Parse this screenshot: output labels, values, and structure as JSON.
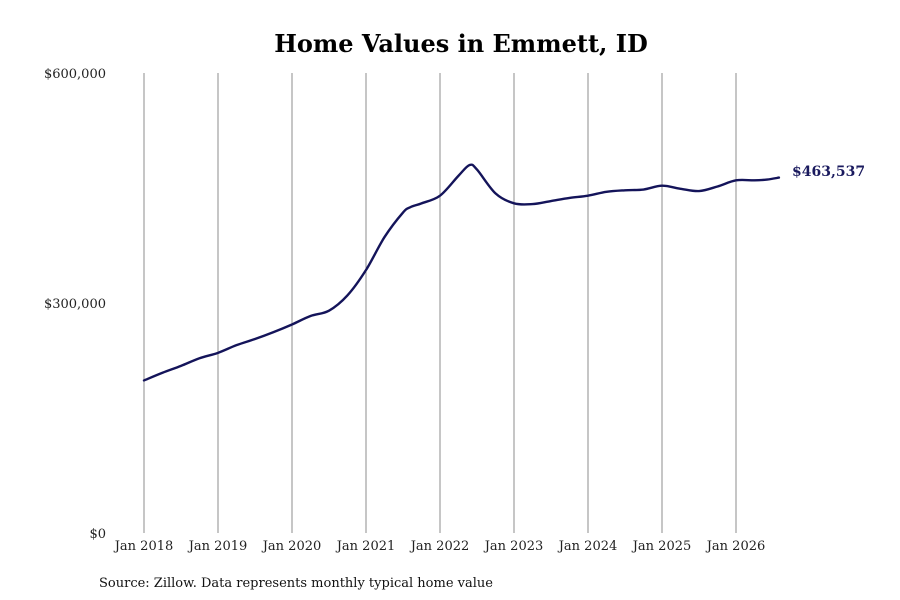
{
  "chart_data": {
    "type": "line",
    "title": "Home Values in Emmett, ID",
    "subtitle": "",
    "xlabel": "",
    "ylabel": "",
    "ylim": [
      0,
      600000
    ],
    "yticks": [
      {
        "value": 0,
        "label": "$0"
      },
      {
        "value": 300000,
        "label": "$300,000"
      },
      {
        "value": 600000,
        "label": "$600,000"
      }
    ],
    "xticks": [
      {
        "value": 2018.0,
        "label": "Jan 2018"
      },
      {
        "value": 2019.0,
        "label": "Jan 2019"
      },
      {
        "value": 2020.0,
        "label": "Jan 2020"
      },
      {
        "value": 2021.0,
        "label": "Jan 2021"
      },
      {
        "value": 2022.0,
        "label": "Jan 2022"
      },
      {
        "value": 2023.0,
        "label": "Jan 2023"
      },
      {
        "value": 2024.0,
        "label": "Jan 2024"
      },
      {
        "value": 2025.0,
        "label": "Jan 2025"
      },
      {
        "value": 2026.0,
        "label": "Jan 2026"
      }
    ],
    "grid": "vertical",
    "series_color": "#14145a",
    "series": [
      {
        "x": [
          2018.0,
          2018.25,
          2018.5,
          2018.75,
          2019.0,
          2019.25,
          2019.5,
          2019.75,
          2020.0,
          2020.25,
          2020.5,
          2020.75,
          2021.0,
          2021.25,
          2021.5,
          2021.6,
          2021.75,
          2022.0,
          2022.25,
          2022.4,
          2022.5,
          2022.75,
          2023.0,
          2023.25,
          2023.5,
          2023.75,
          2024.0,
          2024.25,
          2024.5,
          2024.75,
          2025.0,
          2025.25,
          2025.5,
          2025.75,
          2026.0,
          2026.25,
          2026.42,
          2026.58
        ],
        "values": [
          199000,
          209000,
          218000,
          228000,
          235000,
          245000,
          253000,
          262000,
          272000,
          283000,
          290000,
          310000,
          343000,
          386000,
          418000,
          425000,
          430000,
          440000,
          466000,
          480000,
          474000,
          443000,
          430000,
          429000,
          433000,
          437000,
          440000,
          445000,
          447000,
          448000,
          453000,
          449000,
          446000,
          452000,
          460000,
          460000,
          461000,
          463537
        ]
      }
    ],
    "end_label": "$463,537",
    "source": "Source: Zillow. Data represents monthly typical home value"
  }
}
